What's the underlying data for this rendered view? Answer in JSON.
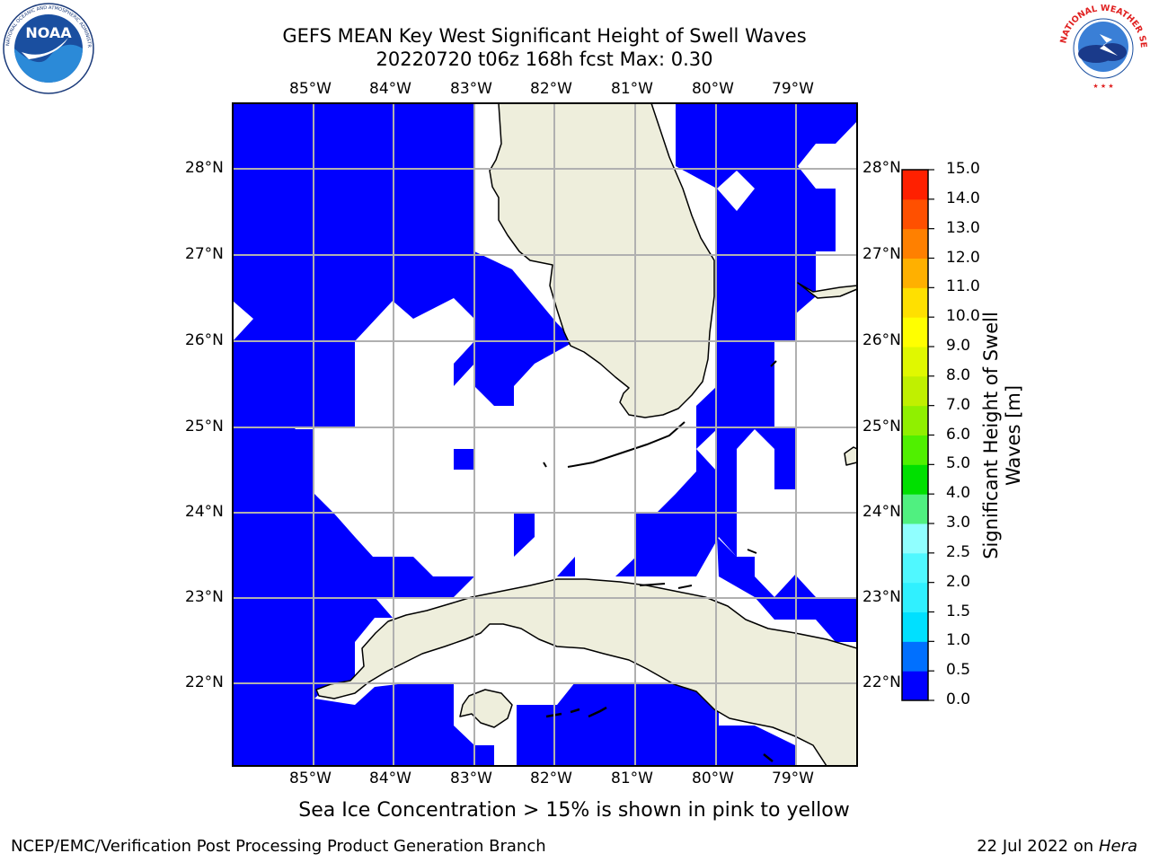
{
  "title_line1": "GEFS MEAN Key West Significant Height of Swell Waves",
  "title_line2": "20220720 t06z 168h fcst   Max: 0.30",
  "logos": {
    "left": "NOAA",
    "right": "NATIONAL WEATHER SERVICE",
    "left_text": "NATIONAL OCEANIC AND ATMOSPHERIC ADMINISTRATION · U.S. DEPARTMENT OF COMMERCE"
  },
  "lon_labels": [
    "85°W",
    "84°W",
    "83°W",
    "82°W",
    "81°W",
    "80°W",
    "79°W"
  ],
  "lat_labels": [
    "28°N",
    "27°N",
    "26°N",
    "25°N",
    "24°N",
    "23°N",
    "22°N"
  ],
  "colorbar": {
    "label_line1": "Significant Height of Swell",
    "label_line2": "Waves [m]",
    "ticks": [
      "0.0",
      "0.5",
      "1.0",
      "1.5",
      "2.0",
      "2.5",
      "3.0",
      "4.0",
      "5.0",
      "6.0",
      "7.0",
      "8.0",
      "9.0",
      "10.0",
      "11.0",
      "12.0",
      "13.0",
      "14.0",
      "15.0"
    ],
    "colors": [
      "#0000ff",
      "#0070ff",
      "#00e0ff",
      "#30f0ff",
      "#50f8ff",
      "#90ffff",
      "#50f080",
      "#00e000",
      "#50f000",
      "#90f000",
      "#c0f000",
      "#e0f800",
      "#ffff00",
      "#ffe000",
      "#ffb000",
      "#ff8000",
      "#ff5000",
      "#ff2000",
      "#ff0000"
    ]
  },
  "note": "Sea Ice Concentration > 15% is shown in pink to yellow",
  "footer_left": "NCEP/EMC/Verification Post Processing Product Generation Branch",
  "footer_date": "22 Jul 2022 on",
  "footer_host": "Hera",
  "colors": {
    "sea_swell": "#0000ff",
    "land": "#eeeedc",
    "grid": "#b0b0b0"
  }
}
